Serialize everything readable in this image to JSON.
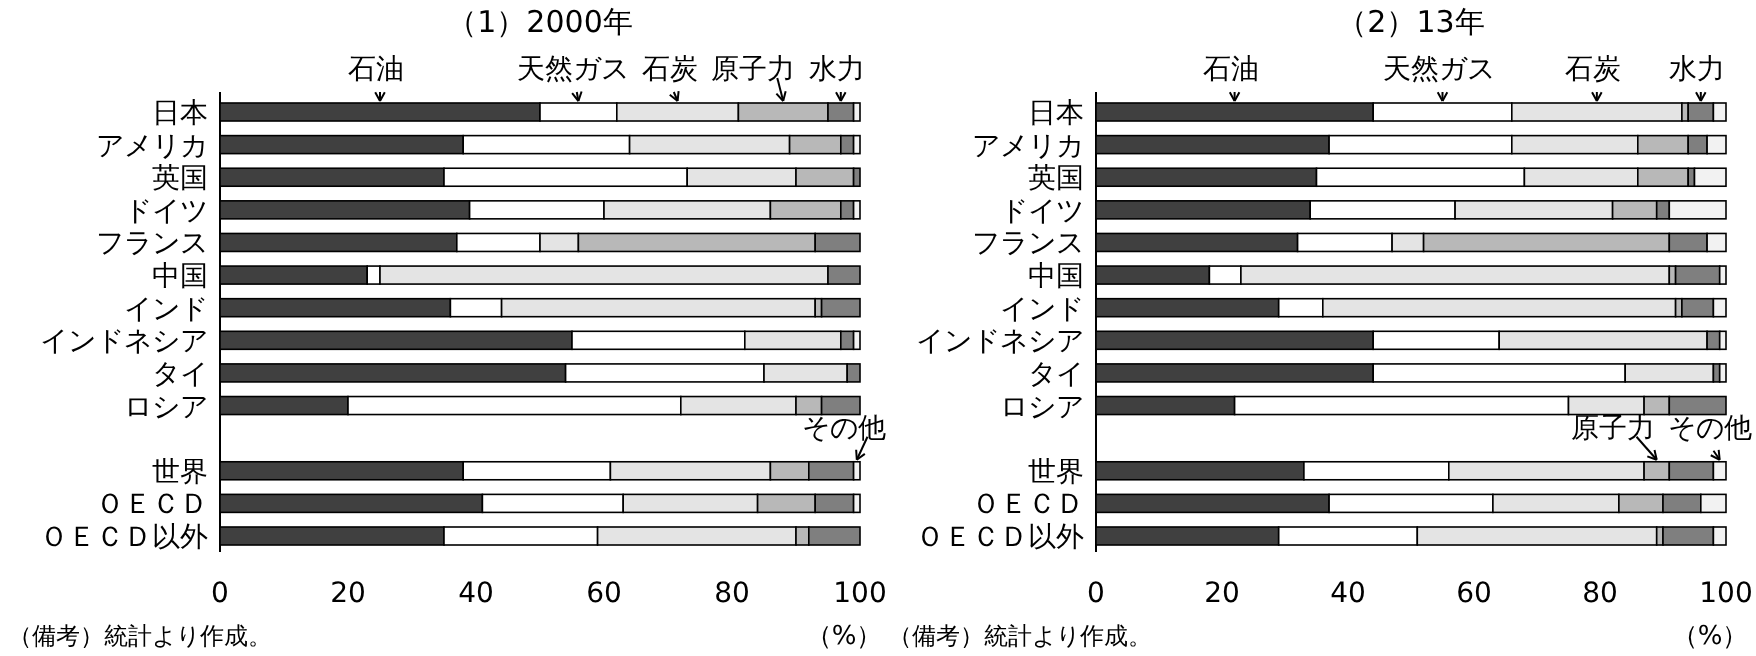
{
  "chart_data": [
    {
      "type": "bar",
      "orientation": "horizontal",
      "stacked": true,
      "title": "（1）2000年",
      "xlabel": "（%）",
      "annotations": [
        "（備考）統計より作成。"
      ],
      "categories": [
        "日本",
        "アメリカ",
        "英国",
        "ドイツ",
        "フランス",
        "中国",
        "インド",
        "インドネシア",
        "タイ",
        "ロシア",
        null,
        "世界",
        "ＯＥＣＤ",
        "ＯＥＣＤ以外"
      ],
      "xlim": [
        0,
        100
      ],
      "xticks": [
        0,
        20,
        40,
        60,
        80,
        100
      ],
      "series": [
        {
          "name": "石油",
          "color": "#404040",
          "values": [
            50,
            38,
            35,
            39,
            37,
            23,
            36,
            55,
            54,
            20,
            null,
            38,
            41,
            35
          ]
        },
        {
          "name": "天然ガス",
          "color": "#ffffff",
          "values": [
            12,
            26,
            38,
            21,
            13,
            2,
            8,
            27,
            31,
            52,
            null,
            23,
            22,
            24
          ]
        },
        {
          "name": "石炭",
          "color": "#e4e4e4",
          "values": [
            19,
            25,
            17,
            26,
            6,
            70,
            49,
            15,
            13,
            18,
            null,
            25,
            21,
            31
          ]
        },
        {
          "name": "原子力",
          "color": "#b8b8b8",
          "values": [
            14,
            8,
            9,
            11,
            37,
            0,
            1,
            0,
            0,
            4,
            null,
            6,
            9,
            2
          ]
        },
        {
          "name": "水力",
          "color": "#7f7f7f",
          "values": [
            4,
            2,
            1,
            2,
            7,
            5,
            6,
            2,
            2,
            6,
            null,
            7,
            6,
            8
          ]
        },
        {
          "name": "その他",
          "color": "#f2f2f2",
          "values": [
            1,
            1,
            0,
            1,
            0,
            0,
            0,
            1,
            0,
            0,
            null,
            1,
            1,
            0
          ]
        }
      ]
    },
    {
      "type": "bar",
      "orientation": "horizontal",
      "stacked": true,
      "title": "（2）13年",
      "xlabel": "（%）",
      "annotations": [
        "（備考）統計より作成。"
      ],
      "categories": [
        "日本",
        "アメリカ",
        "英国",
        "ドイツ",
        "フランス",
        "中国",
        "インド",
        "インドネシア",
        "タイ",
        "ロシア",
        null,
        "世界",
        "ＯＥＣＤ",
        "ＯＥＣＤ以外"
      ],
      "xlim": [
        0,
        100
      ],
      "xticks": [
        0,
        20,
        40,
        60,
        80,
        100
      ],
      "series": [
        {
          "name": "石油",
          "color": "#404040",
          "values": [
            44,
            37,
            35,
            34,
            32,
            18,
            29,
            44,
            44,
            22,
            null,
            33,
            37,
            29
          ]
        },
        {
          "name": "天然ガス",
          "color": "#ffffff",
          "values": [
            22,
            29,
            33,
            23,
            15,
            5,
            7,
            20,
            40,
            53,
            null,
            23,
            26,
            22
          ]
        },
        {
          "name": "石炭",
          "color": "#e4e4e4",
          "values": [
            27,
            20,
            18,
            25,
            5,
            68,
            56,
            33,
            14,
            12,
            null,
            31,
            20,
            38
          ]
        },
        {
          "name": "原子力",
          "color": "#b8b8b8",
          "values": [
            1,
            8,
            8,
            7,
            39,
            1,
            1,
            0,
            0,
            4,
            null,
            4,
            7,
            1
          ]
        },
        {
          "name": "水力",
          "color": "#7f7f7f",
          "values": [
            4,
            3,
            1,
            2,
            6,
            7,
            5,
            2,
            1,
            9,
            null,
            7,
            6,
            8
          ]
        },
        {
          "name": "その他",
          "color": "#f2f2f2",
          "values": [
            2,
            3,
            5,
            9,
            3,
            1,
            2,
            1,
            1,
            0,
            null,
            2,
            4,
            2
          ]
        }
      ]
    }
  ]
}
